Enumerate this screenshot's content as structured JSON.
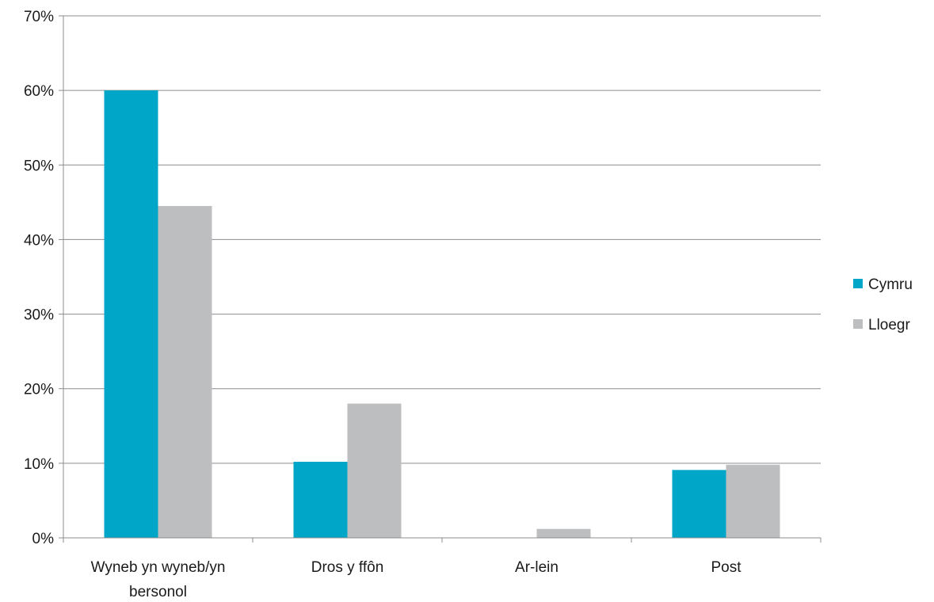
{
  "chart_data": {
    "type": "bar",
    "categories": [
      [
        "Wyneb yn wyneb/yn",
        "bersonol"
      ],
      [
        "Dros y ffôn"
      ],
      [
        "Ar-lein"
      ],
      [
        "Post"
      ]
    ],
    "series": [
      {
        "name": "Cymru",
        "color": "#00a6c8",
        "values": [
          60,
          10.2,
          0,
          9.1
        ]
      },
      {
        "name": "Lloegr",
        "color": "#bdbec0",
        "values": [
          44.5,
          18,
          1.2,
          9.8
        ]
      }
    ],
    "ylim": [
      0,
      70
    ],
    "yticks": [
      "0%",
      "10%",
      "20%",
      "30%",
      "40%",
      "50%",
      "60%",
      "70%"
    ],
    "grid": true,
    "legend_position": "right"
  }
}
